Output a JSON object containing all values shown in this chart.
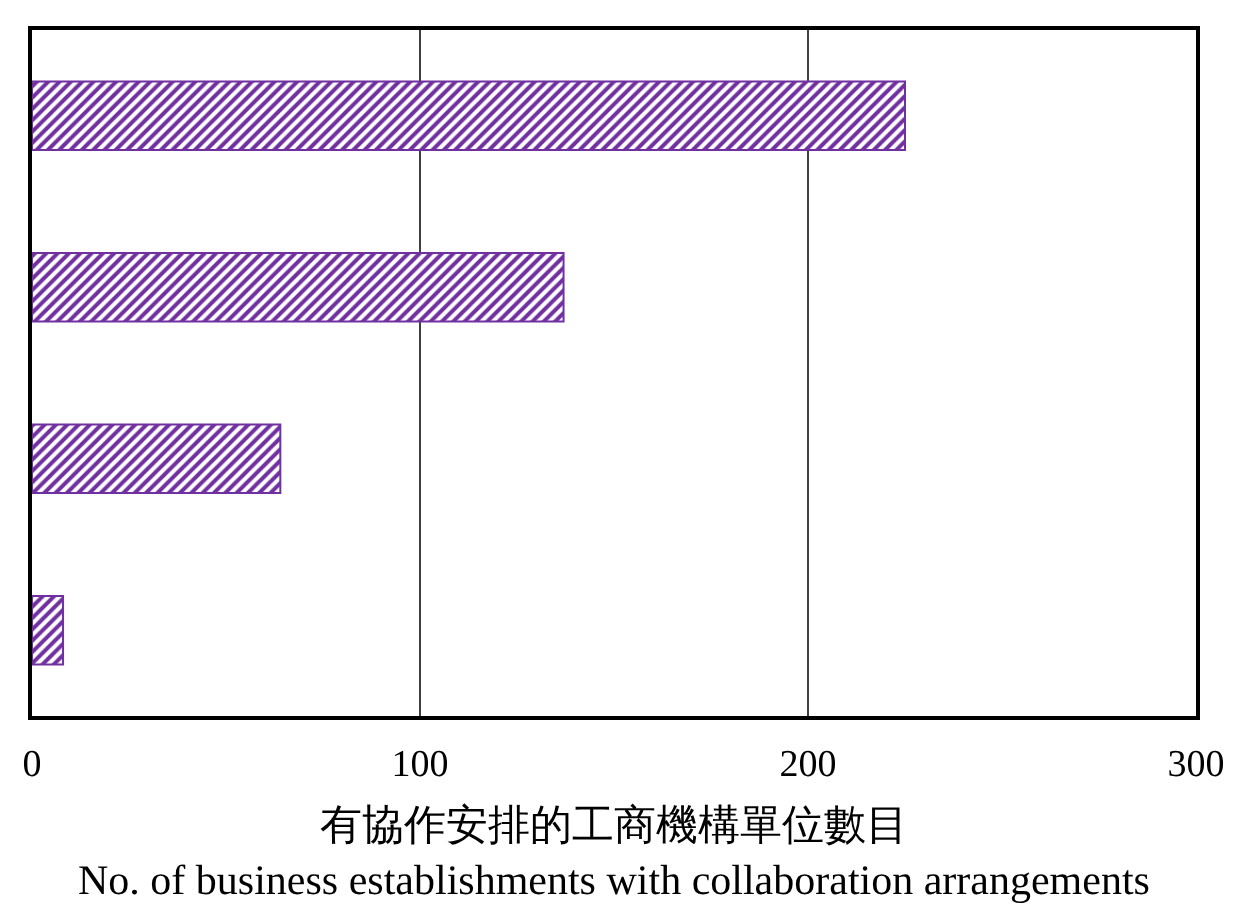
{
  "chart_data": {
    "type": "bar",
    "orientation": "horizontal",
    "categories": [
      null,
      null,
      null,
      null
    ],
    "values": [
      225,
      137,
      64,
      8
    ],
    "color": "#7030a0",
    "xlabel": "有協作安排的工商機構單位數目\nNo. of business establishments with collaboration arrangements",
    "xlim": [
      0,
      300
    ],
    "xticks": [
      0,
      100,
      200,
      300
    ],
    "grid": "x",
    "tick_labels": "x"
  }
}
